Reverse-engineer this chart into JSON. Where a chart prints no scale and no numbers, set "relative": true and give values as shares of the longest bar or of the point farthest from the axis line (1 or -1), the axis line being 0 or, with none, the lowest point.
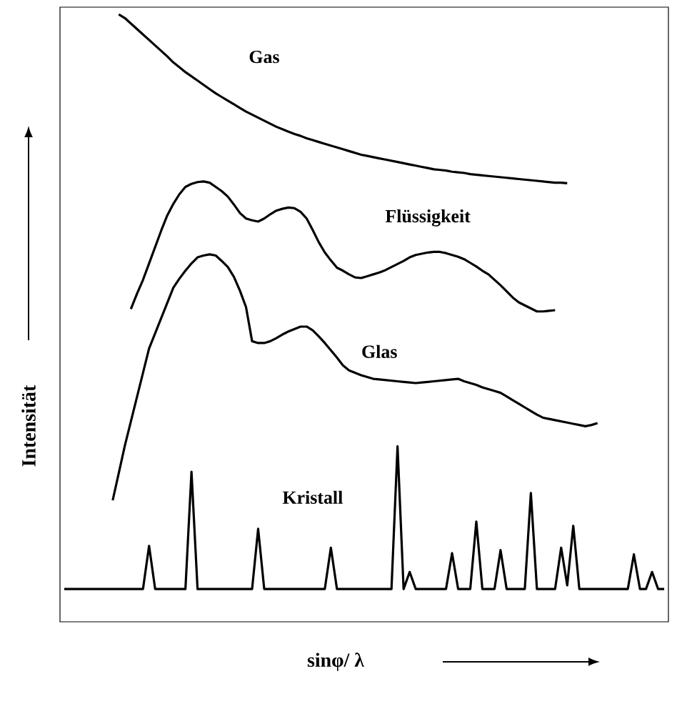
{
  "chart_data": {
    "type": "line",
    "relative": true,
    "xlabel": "sinφ/ λ",
    "ylabel": "Intensität",
    "tick_labels": false,
    "marker": "none",
    "categories": [
      null,
      null,
      null,
      null,
      null,
      null,
      null,
      null,
      null,
      null,
      null,
      null,
      null,
      null,
      null,
      null,
      null,
      null,
      null,
      null,
      null,
      null,
      null,
      null,
      null,
      null,
      null,
      null,
      null,
      null,
      null,
      null,
      null,
      null,
      null,
      null,
      null,
      null,
      null,
      null,
      null,
      null,
      null,
      null,
      null,
      null,
      null,
      null,
      null,
      null,
      null,
      null,
      null,
      null,
      null,
      null,
      null,
      null,
      null,
      null,
      null,
      null,
      null,
      null,
      null,
      null,
      null,
      null,
      null,
      null,
      null,
      null,
      null,
      null,
      null,
      null,
      null,
      null,
      null,
      null,
      null,
      null,
      null,
      null,
      null,
      null,
      null,
      null,
      null,
      null,
      null,
      null,
      null,
      null,
      null,
      null,
      null,
      null,
      null,
      null
    ],
    "series": [
      {
        "name": "Gas",
        "color": "#000000",
        "values": [
          null,
          null,
          null,
          null,
          null,
          null,
          null,
          null,
          null,
          1.0,
          0.994,
          0.985,
          0.976,
          0.967,
          0.958,
          0.949,
          0.94,
          0.931,
          0.921,
          0.913,
          0.905,
          0.898,
          0.891,
          0.884,
          0.877,
          0.87,
          0.864,
          0.858,
          0.852,
          0.846,
          0.84,
          0.835,
          0.83,
          0.825,
          0.82,
          0.815,
          0.811,
          0.807,
          0.803,
          0.8,
          0.796,
          0.793,
          0.79,
          0.787,
          0.784,
          0.781,
          0.778,
          0.775,
          0.772,
          0.769,
          0.767,
          0.765,
          0.763,
          0.761,
          0.759,
          0.757,
          0.755,
          0.753,
          0.751,
          0.749,
          0.747,
          0.745,
          0.744,
          0.743,
          0.741,
          0.74,
          0.739,
          0.737,
          0.736,
          0.735,
          0.734,
          0.733,
          0.732,
          0.731,
          0.73,
          0.729,
          0.728,
          0.727,
          0.726,
          0.725,
          0.724,
          0.723,
          0.723,
          0.722,
          null,
          null,
          null,
          null,
          null,
          null,
          null,
          null,
          null,
          null,
          null,
          null,
          null,
          null,
          null,
          null
        ]
      },
      {
        "name": "Flüssigkeit",
        "color": "#000000",
        "values": [
          null,
          null,
          null,
          null,
          null,
          null,
          null,
          null,
          null,
          null,
          null,
          0.515,
          0.54,
          0.563,
          0.59,
          0.617,
          0.644,
          0.669,
          0.688,
          0.704,
          0.716,
          0.721,
          0.724,
          0.725,
          0.723,
          0.716,
          0.709,
          0.7,
          0.687,
          0.673,
          0.664,
          0.661,
          0.659,
          0.664,
          0.671,
          0.677,
          0.68,
          0.682,
          0.681,
          0.675,
          0.664,
          0.645,
          0.625,
          0.608,
          0.595,
          0.583,
          0.578,
          0.572,
          0.567,
          0.566,
          0.569,
          0.572,
          0.575,
          0.579,
          0.584,
          0.589,
          0.594,
          0.6,
          0.604,
          0.606,
          0.608,
          0.609,
          0.609,
          0.607,
          0.604,
          0.601,
          0.597,
          0.591,
          0.585,
          0.578,
          0.572,
          0.563,
          0.554,
          0.544,
          0.534,
          0.526,
          0.521,
          0.516,
          0.511,
          0.511,
          0.512,
          0.513,
          null,
          null,
          null,
          null,
          null,
          null,
          null,
          null,
          null,
          null,
          null,
          null,
          null,
          null,
          null,
          null,
          null,
          null
        ]
      },
      {
        "name": "Glas",
        "color": "#000000",
        "values": [
          null,
          null,
          null,
          null,
          null,
          null,
          null,
          null,
          0.2,
          0.245,
          0.29,
          0.33,
          0.37,
          0.41,
          0.45,
          0.475,
          0.5,
          0.525,
          0.55,
          0.565,
          0.578,
          0.59,
          0.6,
          0.603,
          0.605,
          0.603,
          0.594,
          0.584,
          0.568,
          0.545,
          0.518,
          0.462,
          0.459,
          0.459,
          0.462,
          0.467,
          0.473,
          0.478,
          0.482,
          0.486,
          0.486,
          0.48,
          0.47,
          0.459,
          0.447,
          0.435,
          0.422,
          0.414,
          0.41,
          0.406,
          0.403,
          0.4,
          0.399,
          0.398,
          0.397,
          0.396,
          0.395,
          0.394,
          0.393,
          0.394,
          0.395,
          0.396,
          0.397,
          0.398,
          0.399,
          0.4,
          0.396,
          0.393,
          0.39,
          0.386,
          0.383,
          0.38,
          0.377,
          0.371,
          0.365,
          0.359,
          0.353,
          0.347,
          0.341,
          0.336,
          0.334,
          0.332,
          0.33,
          0.328,
          0.326,
          0.324,
          0.322,
          0.324,
          0.327,
          null,
          null,
          null,
          null,
          null,
          null,
          null,
          null,
          null,
          null,
          null
        ]
      },
      {
        "name": "Kristall",
        "color": "#000000",
        "values": [
          0.054,
          0.054,
          0.054,
          0.054,
          0.054,
          0.054,
          0.054,
          0.054,
          0.054,
          0.054,
          0.054,
          0.054,
          0.054,
          0.054,
          0.125,
          0.054,
          0.054,
          0.054,
          0.054,
          0.054,
          0.054,
          0.247,
          0.054,
          0.054,
          0.054,
          0.054,
          0.054,
          0.054,
          0.054,
          0.054,
          0.054,
          0.054,
          0.153,
          0.054,
          0.054,
          0.054,
          0.054,
          0.054,
          0.054,
          0.054,
          0.054,
          0.054,
          0.054,
          0.054,
          0.122,
          0.054,
          0.054,
          0.054,
          0.054,
          0.054,
          0.054,
          0.054,
          0.054,
          0.054,
          0.054,
          0.289,
          0.054,
          0.082,
          0.054,
          0.054,
          0.054,
          0.054,
          0.054,
          0.054,
          0.113,
          0.054,
          0.054,
          0.054,
          0.165,
          0.054,
          0.054,
          0.054,
          0.118,
          0.054,
          0.054,
          0.054,
          0.054,
          0.212,
          0.054,
          0.054,
          0.054,
          0.054,
          0.122,
          0.06,
          0.158,
          0.054,
          0.054,
          0.054,
          0.054,
          0.054,
          0.054,
          0.054,
          0.054,
          0.054,
          0.111,
          0.054,
          0.054,
          0.082,
          0.054,
          0.054
        ]
      }
    ]
  }
}
